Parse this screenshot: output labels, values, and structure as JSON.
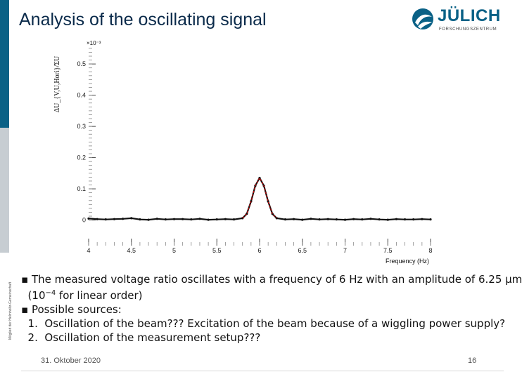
{
  "slide": {
    "title": "Analysis of the oscillating signal",
    "side_text": "Mitglied der Helmholtz-Gemeinschaft",
    "logo_word": "JÜLICH",
    "logo_sub": "FORSCHUNGSZENTRUM",
    "bullet_1a": "The measured voltage ratio oscillates with a frequency of 6 Hz with an amplitude of 6.25 μm",
    "bullet_1b_open": "(10",
    "bullet_1b_exp": "−4",
    "bullet_1b_rest": " for linear order)",
    "possible_sources": "Possible sources:",
    "item_1_num": "1.",
    "item_1": "Oscillation of the beam??? Excitation of the beam because of a wiggling power supply?",
    "item_2_num": "2.",
    "item_2": "Oscillation of the measurement setup???",
    "date": "31. Oktober 2020",
    "page_number": "16"
  },
  "colors": {
    "brand": "#0a6186",
    "accent": "#c7cdd2",
    "fit": "#cc0000",
    "data": "#111111"
  },
  "chart_data": {
    "type": "line",
    "xlabel": "Frequency (Hz)",
    "ylabel": "ΔU_{V,U,Hori}/ΣU",
    "y_multiplier": "×10⁻³",
    "xlim": [
      4,
      8
    ],
    "ylim": [
      -0.01,
      0.57
    ],
    "x_ticks": [
      4,
      4.5,
      5,
      5.5,
      6,
      6.5,
      7,
      7.5,
      8
    ],
    "x_tick_labels": [
      "4",
      "4.5",
      "5",
      "5.5",
      "6",
      "6.5",
      "7",
      "7.5",
      "8"
    ],
    "y_ticks": [
      0,
      0.1,
      0.2,
      0.3,
      0.4,
      0.5
    ],
    "y_tick_labels": [
      "0",
      "0.1",
      "0.2",
      "0.3",
      "0.4",
      "0.5"
    ],
    "grid": false,
    "series": [
      {
        "role": "data",
        "x": [
          4.0,
          4.1,
          4.2,
          4.3,
          4.4,
          4.5,
          4.6,
          4.7,
          4.8,
          4.9,
          5.0,
          5.1,
          5.2,
          5.3,
          5.4,
          5.5,
          5.6,
          5.7,
          5.8,
          5.85,
          5.9,
          5.95,
          6.0,
          6.05,
          6.1,
          6.15,
          6.2,
          6.3,
          6.4,
          6.5,
          6.6,
          6.7,
          6.8,
          6.9,
          7.0,
          7.1,
          7.2,
          7.3,
          7.4,
          7.5,
          7.6,
          7.7,
          7.8,
          7.9,
          8.0
        ],
        "y": [
          0.005,
          0.003,
          0.002,
          0.003,
          0.004,
          0.006,
          0.002,
          0.001,
          0.004,
          0.002,
          0.003,
          0.003,
          0.002,
          0.004,
          0.001,
          0.002,
          0.003,
          0.002,
          0.006,
          0.02,
          0.06,
          0.11,
          0.135,
          0.11,
          0.06,
          0.02,
          0.006,
          0.002,
          0.003,
          0.001,
          0.004,
          0.002,
          0.003,
          0.002,
          0.001,
          0.003,
          0.002,
          0.004,
          0.002,
          0.001,
          0.003,
          0.002,
          0.002,
          0.003,
          0.002
        ]
      },
      {
        "role": "fit",
        "x": [
          5.8,
          5.85,
          5.9,
          5.95,
          6.0,
          6.05,
          6.1,
          6.15,
          6.2
        ],
        "y": [
          0.006,
          0.02,
          0.06,
          0.11,
          0.135,
          0.11,
          0.06,
          0.02,
          0.006
        ]
      }
    ]
  }
}
